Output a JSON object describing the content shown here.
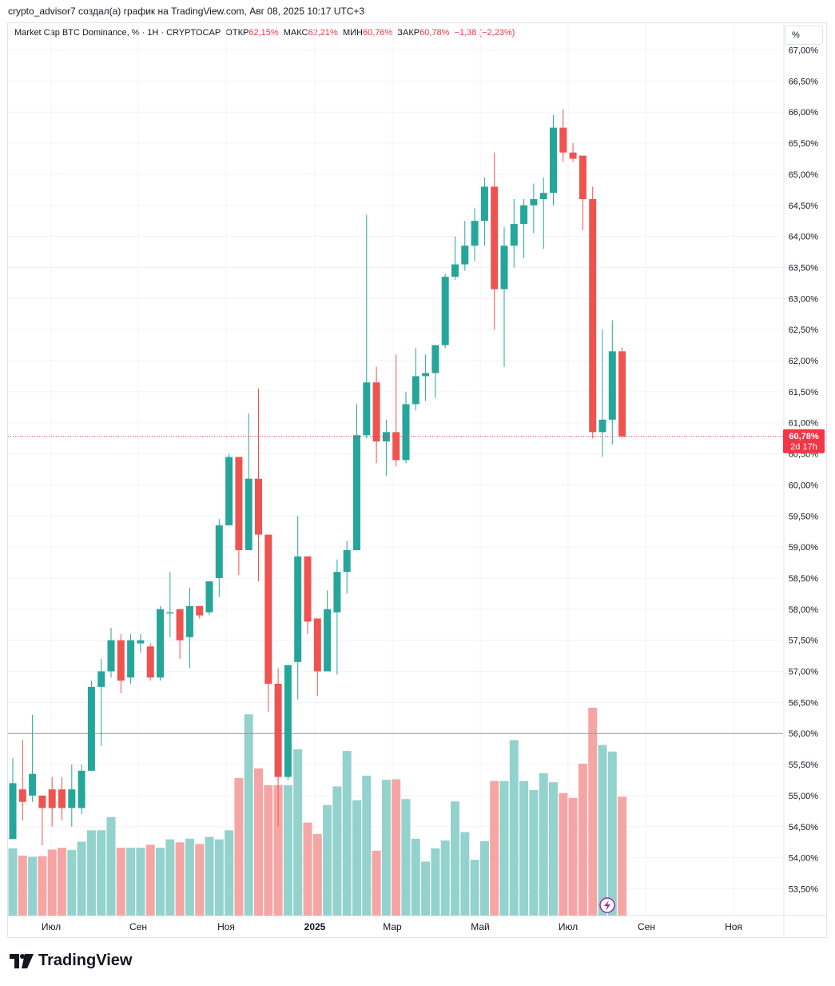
{
  "header": {
    "attribution": "crypto_advisor7 создал(а) график на TradingView.com, Авг 08, 2025 10:17 UTC+3"
  },
  "legend": {
    "symbol": "Market Cap BTC Dominance, % · 1Н · CRYPTOCAP",
    "open_label": "ОТКР",
    "open_value": "62,15%",
    "high_label": "МАКС",
    "high_value": "62,21%",
    "low_label": "МИН",
    "low_value": "60,76%",
    "close_label": "ЗАКР",
    "close_value": "60,78%",
    "change": "−1,38 (−2,23%)"
  },
  "scale_mode": "%",
  "price_tag": {
    "price": "60,78%",
    "countdown": "2d 17h"
  },
  "brand": {
    "wordmark": "TradingView"
  },
  "colors": {
    "up": "#26a69a",
    "down": "#ef5350",
    "up_volume": "#93d2cd",
    "down_volume": "#f5a6a4",
    "price_line": "#f23645"
  },
  "chart_data": {
    "type": "candlestick",
    "symbol": "Market Cap BTC Dominance, %",
    "interval": "1W",
    "y_unit": "%",
    "ylim": [
      53.0,
      67.1
    ],
    "y_ticks": [
      "53,50%",
      "54,00%",
      "54,50%",
      "55,00%",
      "55,50%",
      "56,00%",
      "56,50%",
      "57,00%",
      "57,50%",
      "58,00%",
      "58,50%",
      "59,00%",
      "59,50%",
      "60,00%",
      "60,50%",
      "61,00%",
      "61,50%",
      "62,00%",
      "62,50%",
      "63,00%",
      "63,50%",
      "64,00%",
      "64,50%",
      "65,00%",
      "65,50%",
      "66,00%",
      "66,50%",
      "67,00%"
    ],
    "x_labels": [
      "Июл",
      "Сен",
      "Ноя",
      "2025",
      "Мар",
      "Май",
      "Июл",
      "Сен",
      "Ноя"
    ],
    "last_price": 60.78,
    "horizontal_line": 56.0,
    "candles": [
      [
        54.3,
        55.2,
        55.6,
        54.3,
        1.12
      ],
      [
        55.1,
        54.9,
        55.9,
        54.6,
        1.0
      ],
      [
        55.0,
        55.35,
        56.3,
        54.9,
        0.98
      ],
      [
        55.0,
        54.8,
        55.0,
        54.2,
        0.99
      ],
      [
        55.1,
        54.8,
        55.3,
        54.5,
        1.1
      ],
      [
        55.1,
        54.8,
        55.3,
        54.6,
        1.13
      ],
      [
        54.8,
        55.1,
        55.5,
        54.5,
        1.09
      ],
      [
        54.8,
        55.4,
        55.5,
        54.7,
        1.23
      ],
      [
        55.4,
        56.75,
        56.85,
        55.4,
        1.42
      ],
      [
        56.75,
        57.0,
        57.2,
        55.8,
        1.42
      ],
      [
        57.0,
        57.5,
        57.7,
        56.9,
        1.64
      ],
      [
        57.5,
        56.85,
        57.6,
        56.65,
        1.13
      ],
      [
        56.9,
        57.5,
        57.6,
        56.8,
        1.13
      ],
      [
        57.45,
        57.5,
        57.6,
        57.3,
        1.13
      ],
      [
        57.4,
        56.9,
        57.45,
        56.85,
        1.18
      ],
      [
        56.9,
        58.0,
        58.05,
        56.85,
        1.13
      ],
      [
        57.95,
        57.95,
        58.6,
        57.55,
        1.27
      ],
      [
        58.0,
        57.5,
        58.0,
        57.2,
        1.22
      ],
      [
        57.55,
        58.05,
        58.35,
        57.05,
        1.28
      ],
      [
        58.05,
        57.9,
        58.05,
        57.85,
        1.19
      ],
      [
        57.95,
        58.45,
        58.45,
        57.9,
        1.31
      ],
      [
        58.5,
        59.35,
        59.45,
        58.2,
        1.27
      ],
      [
        59.35,
        60.45,
        60.5,
        59.35,
        1.42
      ],
      [
        60.45,
        58.95,
        60.45,
        58.55,
        2.29
      ],
      [
        58.95,
        60.1,
        61.15,
        58.95,
        3.35
      ],
      [
        60.1,
        59.2,
        61.55,
        58.45,
        2.45
      ],
      [
        59.2,
        56.8,
        59.2,
        56.35,
        2.17
      ],
      [
        56.8,
        55.3,
        57.05,
        54.5,
        2.17
      ],
      [
        55.3,
        57.1,
        57.1,
        55.25,
        2.17
      ],
      [
        57.15,
        58.85,
        59.5,
        56.55,
        2.77
      ],
      [
        58.85,
        57.8,
        58.85,
        57.6,
        1.55
      ],
      [
        57.85,
        57.0,
        57.85,
        56.6,
        1.36
      ],
      [
        57.0,
        58.0,
        58.3,
        57.0,
        1.84
      ],
      [
        57.95,
        58.6,
        58.8,
        56.95,
        2.15
      ],
      [
        58.6,
        58.95,
        59.1,
        58.25,
        2.74
      ],
      [
        58.95,
        60.8,
        61.3,
        58.95,
        1.92
      ],
      [
        60.8,
        61.65,
        64.35,
        60.75,
        2.33
      ],
      [
        61.65,
        60.7,
        61.9,
        60.35,
        1.08
      ],
      [
        60.7,
        60.85,
        61.05,
        60.15,
        2.26
      ],
      [
        60.85,
        60.4,
        62.1,
        60.3,
        2.27
      ],
      [
        60.4,
        61.3,
        61.5,
        60.35,
        1.94
      ],
      [
        61.3,
        61.75,
        62.2,
        61.2,
        1.28
      ],
      [
        61.75,
        61.8,
        62.1,
        61.35,
        0.9
      ],
      [
        61.8,
        62.25,
        62.25,
        61.4,
        1.12
      ],
      [
        62.25,
        63.35,
        63.4,
        62.2,
        1.25
      ],
      [
        63.35,
        63.55,
        64.0,
        63.3,
        1.9
      ],
      [
        63.55,
        63.85,
        64.25,
        63.45,
        1.39
      ],
      [
        63.85,
        64.25,
        64.45,
        63.6,
        0.93
      ],
      [
        64.25,
        64.8,
        64.95,
        63.85,
        1.24
      ],
      [
        64.8,
        63.15,
        65.35,
        62.5,
        2.24
      ],
      [
        63.15,
        63.85,
        64.15,
        61.9,
        2.24
      ],
      [
        63.85,
        64.2,
        64.6,
        63.5,
        2.92
      ],
      [
        64.2,
        64.5,
        64.6,
        63.65,
        2.24
      ],
      [
        64.5,
        64.6,
        64.85,
        64.05,
        2.09
      ],
      [
        64.6,
        64.7,
        64.95,
        63.8,
        2.37
      ],
      [
        64.7,
        65.75,
        65.95,
        64.5,
        2.22
      ],
      [
        65.75,
        65.35,
        66.05,
        65.2,
        2.04
      ],
      [
        65.35,
        65.25,
        65.5,
        65.2,
        1.96
      ],
      [
        65.3,
        64.6,
        65.3,
        64.1,
        2.53
      ],
      [
        64.6,
        60.85,
        64.8,
        60.75,
        3.46
      ],
      [
        60.85,
        61.05,
        62.5,
        60.45,
        2.84
      ],
      [
        61.05,
        62.15,
        62.65,
        60.65,
        2.73
      ],
      [
        62.15,
        60.78,
        62.21,
        60.76,
        1.98
      ]
    ]
  }
}
